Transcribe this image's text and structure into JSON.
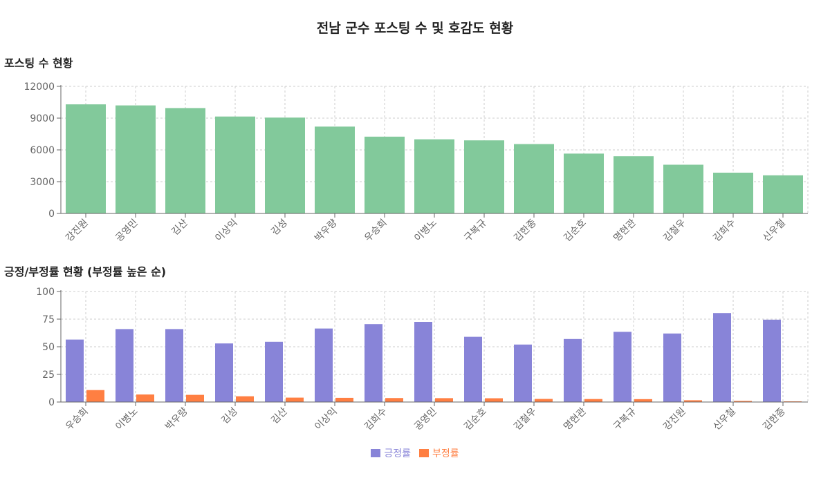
{
  "title": "전남 군수 포스팅 수 및 호감도 현황",
  "colors": {
    "posting": "#82c99b",
    "positive": "#8884d8",
    "negative": "#ff7f42",
    "grid": "#cccccc",
    "axis": "#666666"
  },
  "chart_data": [
    {
      "type": "bar",
      "title": "포스팅 수 현황",
      "categories": [
        "강진원",
        "공영민",
        "김산",
        "이상익",
        "김성",
        "박우량",
        "우승희",
        "이병노",
        "구복규",
        "김한종",
        "김순호",
        "명현관",
        "김철우",
        "김희수",
        "신우철"
      ],
      "series": [
        {
          "values": [
            10300,
            10200,
            9950,
            9150,
            9050,
            8200,
            7250,
            7000,
            6900,
            6550,
            5650,
            5400,
            4600,
            3850,
            3600
          ]
        }
      ],
      "ylim": [
        0,
        12000
      ],
      "yticks": [
        0,
        3000,
        6000,
        9000,
        12000
      ],
      "grid": true
    },
    {
      "type": "bar",
      "title": "긍정/부정률 현황 (부정률 높은 순)",
      "categories": [
        "우승희",
        "이병노",
        "박우량",
        "김성",
        "김산",
        "이상익",
        "김희수",
        "공영민",
        "김순호",
        "김철우",
        "명현관",
        "구복규",
        "강진원",
        "신우철",
        "김한종"
      ],
      "series": [
        {
          "name": "긍정률",
          "values": [
            56.5,
            66,
            66,
            53,
            54.5,
            66.5,
            70.5,
            72.5,
            59,
            52,
            57,
            63.5,
            62,
            80.5,
            74.5
          ]
        },
        {
          "name": "부정률",
          "values": [
            10.8,
            6.8,
            6.5,
            5.2,
            4.0,
            3.8,
            3.6,
            3.5,
            3.4,
            2.8,
            2.7,
            2.6,
            1.6,
            1.0,
            0.6
          ]
        }
      ],
      "ylim": [
        0,
        100
      ],
      "yticks": [
        0,
        25,
        50,
        75,
        100
      ],
      "grid": true,
      "legend": "bottom-center"
    }
  ]
}
